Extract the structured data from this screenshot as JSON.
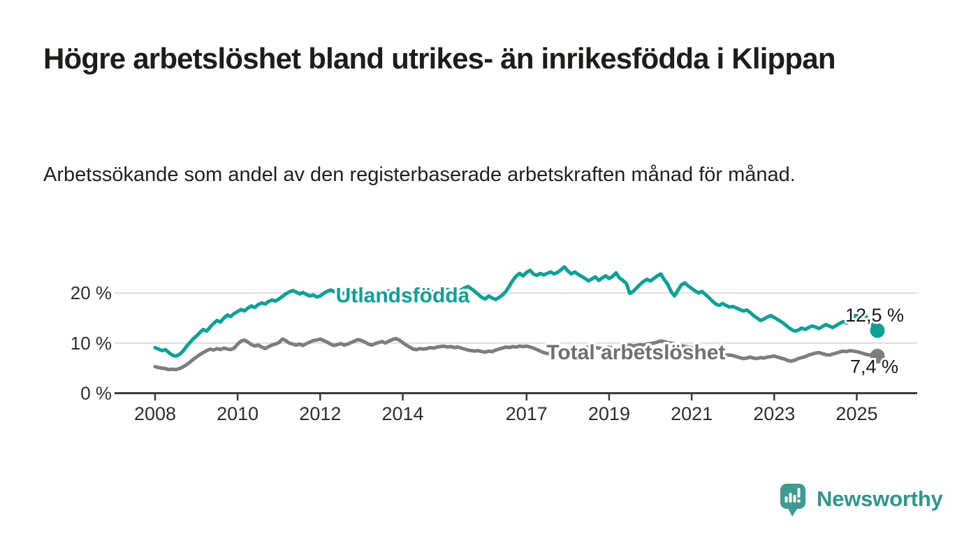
{
  "header": {
    "title": "Högre arbetslöshet bland utrikes- än inrikesfödda i Klippan",
    "subtitle": "Arbetssökande som andel av den registerbaserade arbetskraften månad för månad."
  },
  "chart_data": {
    "type": "line",
    "title": "Högre arbetslöshet bland utrikes- än inrikesfödda i Klippan",
    "subtitle": "Arbetssökande som andel av den registerbaserade arbetskraften månad för månad.",
    "unit": "%",
    "frequency": "monthly",
    "x_start_year": 2008,
    "x_end": "2025-07",
    "x_ticks": [
      2008,
      2010,
      2012,
      2014,
      2017,
      2019,
      2021,
      2023,
      2025
    ],
    "y_ticks": [
      {
        "value": 0,
        "label": "0 %"
      },
      {
        "value": 10,
        "label": "10 %"
      },
      {
        "value": 20,
        "label": "20 %"
      }
    ],
    "ylim": [
      0,
      27
    ],
    "grid": "horizontal",
    "legend_position": "inline-labels",
    "series": [
      {
        "name": "Utlandsfödda",
        "color": "#0aa296",
        "inline_label": {
          "text": "Utlandsfödda",
          "x_year": 2014.0,
          "y_value": 19.7
        },
        "end_value": 12.5,
        "end_label": "12,5 %",
        "values": [
          9.1,
          8.8,
          8.5,
          8.7,
          8.1,
          7.6,
          7.4,
          7.7,
          8.3,
          9.2,
          10.0,
          10.8,
          11.4,
          12.1,
          12.7,
          12.4,
          13.2,
          13.9,
          14.5,
          14.2,
          15.0,
          15.6,
          15.3,
          15.9,
          16.3,
          16.7,
          16.4,
          17.0,
          17.4,
          17.1,
          17.7,
          18.0,
          17.8,
          18.3,
          18.6,
          18.4,
          18.8,
          19.3,
          19.8,
          20.2,
          20.5,
          20.2,
          19.8,
          20.1,
          19.7,
          19.4,
          19.6,
          19.2,
          19.4,
          19.9,
          20.3,
          20.6,
          20.3,
          19.9,
          19.7,
          20.0,
          19.6,
          19.4,
          19.7,
          19.5,
          19.8,
          20.1,
          19.9,
          20.2,
          20.0,
          19.7,
          19.9,
          20.2,
          20.4,
          20.1,
          19.9,
          20.1,
          20.3,
          20.0,
          19.8,
          20.1,
          20.4,
          20.2,
          19.9,
          20.1,
          20.4,
          20.2,
          20.0,
          20.2,
          20.4,
          20.7,
          20.4,
          20.1,
          20.3,
          20.6,
          21.0,
          21.3,
          20.8,
          20.3,
          19.7,
          19.1,
          18.8,
          19.4,
          19.0,
          18.7,
          19.1,
          19.6,
          20.3,
          21.4,
          22.5,
          23.4,
          23.9,
          23.4,
          24.1,
          24.5,
          23.8,
          23.5,
          23.9,
          23.6,
          23.9,
          24.2,
          23.8,
          24.1,
          24.6,
          25.2,
          24.4,
          23.8,
          24.2,
          23.7,
          23.3,
          22.9,
          22.4,
          22.8,
          23.2,
          22.5,
          23.0,
          23.4,
          22.9,
          23.3,
          24.0,
          23.0,
          22.5,
          21.9,
          19.9,
          20.3,
          21.0,
          21.7,
          22.3,
          22.7,
          22.4,
          22.9,
          23.4,
          23.8,
          22.7,
          21.8,
          20.3,
          19.4,
          20.5,
          21.6,
          22.0,
          21.4,
          20.9,
          20.4,
          20.0,
          20.3,
          19.7,
          19.1,
          18.4,
          17.8,
          17.5,
          17.9,
          17.5,
          17.2,
          17.3,
          17.0,
          16.7,
          16.4,
          16.6,
          16.1,
          15.5,
          15.0,
          14.5,
          14.8,
          15.2,
          15.5,
          15.1,
          14.7,
          14.3,
          13.8,
          13.2,
          12.7,
          12.4,
          12.6,
          13.0,
          12.7,
          13.1,
          13.4,
          13.2,
          12.9,
          13.3,
          13.7,
          13.4,
          13.1,
          13.5,
          13.9,
          14.3,
          14.0,
          14.5,
          15.1,
          15.7,
          16.2,
          15.8,
          15.0,
          14.1,
          13.2,
          12.5
        ]
      },
      {
        "name": "Total arbetslöshet",
        "color": "#7d7d7d",
        "label_color": "#6f6f6f",
        "inline_label": {
          "text": "Total arbetslöshet",
          "x_year": 2019.65,
          "y_value": 8.3
        },
        "end_value": 7.4,
        "end_label": "7,4 %",
        "values": [
          5.3,
          5.1,
          5.0,
          4.9,
          4.7,
          4.8,
          4.7,
          4.9,
          5.2,
          5.6,
          6.1,
          6.7,
          7.2,
          7.7,
          8.1,
          8.5,
          8.8,
          8.6,
          8.9,
          8.7,
          9.0,
          8.8,
          8.7,
          9.0,
          9.8,
          10.4,
          10.6,
          10.2,
          9.7,
          9.4,
          9.6,
          9.2,
          8.9,
          9.3,
          9.6,
          9.8,
          10.1,
          10.8,
          10.5,
          10.0,
          9.8,
          9.6,
          9.8,
          9.5,
          9.9,
          10.2,
          10.5,
          10.6,
          10.8,
          10.5,
          10.2,
          9.8,
          9.5,
          9.7,
          9.9,
          9.6,
          9.8,
          10.1,
          10.4,
          10.7,
          10.5,
          10.2,
          9.8,
          9.6,
          9.9,
          10.1,
          10.3,
          10.0,
          10.4,
          10.7,
          10.9,
          10.6,
          10.1,
          9.6,
          9.2,
          8.8,
          8.7,
          8.9,
          8.8,
          8.9,
          9.1,
          9.0,
          9.2,
          9.3,
          9.4,
          9.2,
          9.3,
          9.1,
          9.2,
          9.0,
          8.8,
          8.6,
          8.5,
          8.4,
          8.5,
          8.3,
          8.2,
          8.4,
          8.3,
          8.6,
          8.8,
          9.0,
          9.2,
          9.1,
          9.3,
          9.2,
          9.4,
          9.3,
          9.4,
          9.2,
          9.0,
          8.7,
          8.4,
          8.1,
          7.9,
          8.0,
          8.2,
          8.3,
          8.2,
          8.1,
          8.2,
          8.3,
          8.5,
          8.7,
          8.8,
          9.0,
          9.2,
          9.3,
          9.1,
          9.0,
          8.9,
          9.1,
          9.2,
          9.0,
          8.9,
          9.1,
          9.3,
          9.5,
          9.6,
          9.4,
          9.5,
          9.7,
          9.6,
          9.8,
          9.9,
          10.0,
          10.2,
          10.4,
          10.3,
          10.1,
          10.0,
          9.8,
          9.7,
          9.5,
          9.3,
          9.2,
          9.1,
          9.0,
          8.8,
          8.6,
          8.4,
          8.2,
          8.0,
          7.9,
          7.8,
          7.7,
          7.6,
          7.6,
          7.5,
          7.3,
          7.1,
          6.9,
          7.0,
          7.2,
          7.0,
          6.9,
          7.1,
          7.0,
          7.2,
          7.3,
          7.4,
          7.2,
          7.0,
          6.8,
          6.5,
          6.4,
          6.6,
          6.9,
          7.1,
          7.3,
          7.6,
          7.8,
          8.0,
          8.1,
          7.9,
          7.7,
          7.6,
          7.8,
          8.0,
          8.2,
          8.4,
          8.3,
          8.5,
          8.4,
          8.3,
          8.1,
          7.9,
          7.7,
          7.6,
          7.5,
          7.4
        ]
      }
    ]
  },
  "footer": {
    "brand": "Newsworthy",
    "logo_icon": "newsworthy-speech-bubble-bars-icon",
    "brand_color": "#2f968e",
    "icon_color": "#3e9b94"
  },
  "colors": {
    "background": "#ffffff",
    "gridline": "#d4d4d4",
    "axis": "#3b3b3b",
    "tick_text": "#2e2e2e",
    "value_label_text": "#1a1a1a"
  }
}
